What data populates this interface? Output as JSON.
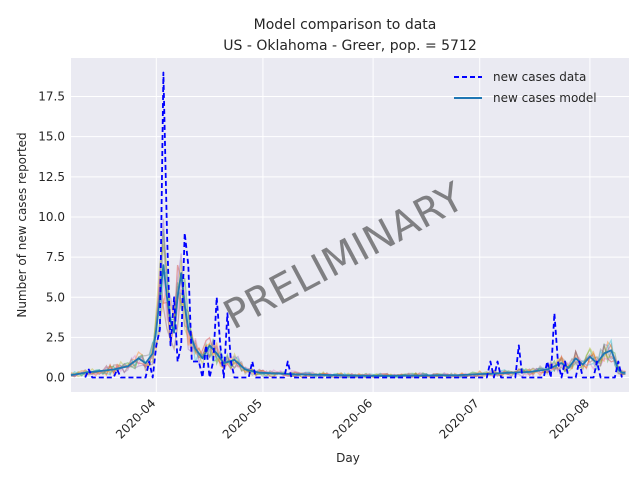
{
  "chart_data": {
    "type": "line",
    "title": "Model comparison to data",
    "subtitle": "US - Oklahoma - Greer, pop. = 5712",
    "xlabel": "Day",
    "ylabel": "Number of new cases reported",
    "watermark": "PRELIMINARY",
    "x_domain": [
      "2020-03-08",
      "2020-08-12"
    ],
    "x_ticks": [
      {
        "date": "2020-04-01",
        "label": "2020-04"
      },
      {
        "date": "2020-05-01",
        "label": "2020-05"
      },
      {
        "date": "2020-06-01",
        "label": "2020-06"
      },
      {
        "date": "2020-07-01",
        "label": "2020-07"
      },
      {
        "date": "2020-08-01",
        "label": "2020-08"
      }
    ],
    "ylim": [
      -0.9,
      19.9
    ],
    "y_ticks": [
      0.0,
      2.5,
      5.0,
      7.5,
      10.0,
      12.5,
      15.0,
      17.5
    ],
    "y_tick_labels": [
      "0.0",
      "2.5",
      "5.0",
      "7.5",
      "10.0",
      "12.5",
      "15.0",
      "17.5"
    ],
    "grid": true,
    "legend_position": "top-right",
    "legend": [
      {
        "label": "new cases data",
        "style": "dashed",
        "color": "#0000ff"
      },
      {
        "label": "new cases model",
        "style": "solid",
        "color": "#1f77b4"
      }
    ],
    "series": [
      {
        "name": "new cases data",
        "color": "#0000ff",
        "points": [
          [
            "2020-03-12",
            0
          ],
          [
            "2020-03-13",
            0.5
          ],
          [
            "2020-03-14",
            0
          ],
          [
            "2020-03-20",
            0
          ],
          [
            "2020-03-21",
            0.5
          ],
          [
            "2020-03-22",
            0
          ],
          [
            "2020-03-29",
            0
          ],
          [
            "2020-03-30",
            1
          ],
          [
            "2020-03-31",
            0
          ],
          [
            "2020-04-01",
            2
          ],
          [
            "2020-04-02",
            3
          ],
          [
            "2020-04-03",
            19
          ],
          [
            "2020-04-04",
            9
          ],
          [
            "2020-04-05",
            2
          ],
          [
            "2020-04-06",
            5
          ],
          [
            "2020-04-07",
            1
          ],
          [
            "2020-04-08",
            2
          ],
          [
            "2020-04-09",
            9
          ],
          [
            "2020-04-10",
            7
          ],
          [
            "2020-04-11",
            1
          ],
          [
            "2020-04-12",
            1
          ],
          [
            "2020-04-13",
            1
          ],
          [
            "2020-04-14",
            0
          ],
          [
            "2020-04-15",
            2
          ],
          [
            "2020-04-16",
            0
          ],
          [
            "2020-04-17",
            1
          ],
          [
            "2020-04-18",
            5
          ],
          [
            "2020-04-19",
            2
          ],
          [
            "2020-04-20",
            0
          ],
          [
            "2020-04-21",
            4
          ],
          [
            "2020-04-22",
            1
          ],
          [
            "2020-04-23",
            0
          ],
          [
            "2020-04-27",
            0
          ],
          [
            "2020-04-28",
            1
          ],
          [
            "2020-04-29",
            0
          ],
          [
            "2020-05-07",
            0
          ],
          [
            "2020-05-08",
            1
          ],
          [
            "2020-05-09",
            0
          ],
          [
            "2020-07-03",
            0
          ],
          [
            "2020-07-04",
            1
          ],
          [
            "2020-07-05",
            0
          ],
          [
            "2020-07-06",
            1
          ],
          [
            "2020-07-07",
            0
          ],
          [
            "2020-07-11",
            0
          ],
          [
            "2020-07-12",
            2
          ],
          [
            "2020-07-13",
            0
          ],
          [
            "2020-07-19",
            0
          ],
          [
            "2020-07-20",
            1
          ],
          [
            "2020-07-21",
            0
          ],
          [
            "2020-07-22",
            4
          ],
          [
            "2020-07-23",
            1
          ],
          [
            "2020-07-24",
            0
          ],
          [
            "2020-07-25",
            1
          ],
          [
            "2020-07-26",
            0
          ],
          [
            "2020-07-28",
            0
          ],
          [
            "2020-07-29",
            1
          ],
          [
            "2020-07-30",
            0
          ],
          [
            "2020-08-02",
            0
          ],
          [
            "2020-08-03",
            1
          ],
          [
            "2020-08-04",
            0
          ],
          [
            "2020-08-08",
            0
          ],
          [
            "2020-08-09",
            1
          ],
          [
            "2020-08-10",
            0
          ]
        ]
      },
      {
        "name": "new cases model",
        "color": "#1f77b4",
        "points": [
          [
            "2020-03-08",
            0.15
          ],
          [
            "2020-03-12",
            0.3
          ],
          [
            "2020-03-16",
            0.4
          ],
          [
            "2020-03-20",
            0.5
          ],
          [
            "2020-03-24",
            0.7
          ],
          [
            "2020-03-27",
            1.2
          ],
          [
            "2020-03-29",
            0.9
          ],
          [
            "2020-03-31",
            1.5
          ],
          [
            "2020-04-01",
            3
          ],
          [
            "2020-04-02",
            5
          ],
          [
            "2020-04-03",
            7
          ],
          [
            "2020-04-04",
            5
          ],
          [
            "2020-04-05",
            3.5
          ],
          [
            "2020-04-06",
            2.8
          ],
          [
            "2020-04-07",
            5
          ],
          [
            "2020-04-08",
            6.5
          ],
          [
            "2020-04-09",
            4.5
          ],
          [
            "2020-04-10",
            3
          ],
          [
            "2020-04-12",
            1.8
          ],
          [
            "2020-04-14",
            1.2
          ],
          [
            "2020-04-16",
            2
          ],
          [
            "2020-04-18",
            1.5
          ],
          [
            "2020-04-20",
            0.9
          ],
          [
            "2020-04-23",
            1.1
          ],
          [
            "2020-04-26",
            0.5
          ],
          [
            "2020-04-30",
            0.3
          ],
          [
            "2020-05-10",
            0.2
          ],
          [
            "2020-06-01",
            0.1
          ],
          [
            "2020-06-25",
            0.15
          ],
          [
            "2020-07-05",
            0.25
          ],
          [
            "2020-07-15",
            0.35
          ],
          [
            "2020-07-20",
            0.5
          ],
          [
            "2020-07-24",
            0.9
          ],
          [
            "2020-07-26",
            0.6
          ],
          [
            "2020-07-28",
            1.2
          ],
          [
            "2020-07-30",
            0.8
          ],
          [
            "2020-08-01",
            1.3
          ],
          [
            "2020-08-03",
            0.9
          ],
          [
            "2020-08-05",
            1.5
          ],
          [
            "2020-08-07",
            1.7
          ],
          [
            "2020-08-08",
            1.1
          ],
          [
            "2020-08-09",
            0.5
          ],
          [
            "2020-08-10",
            0.3
          ],
          [
            "2020-08-11",
            0.3
          ]
        ]
      }
    ]
  }
}
